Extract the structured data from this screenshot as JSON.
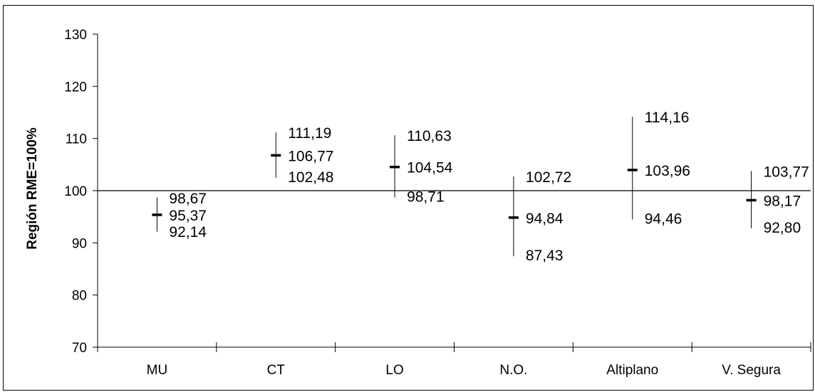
{
  "chart_data": {
    "type": "error_bar",
    "ylabel": "Región RME=100%",
    "ylim": [
      70,
      130
    ],
    "yticks": [
      70,
      80,
      90,
      100,
      110,
      120,
      130
    ],
    "ytick_labels": [
      "70",
      "80",
      "90",
      "100",
      "110",
      "120",
      "130"
    ],
    "reference_line": 100,
    "categories": [
      "MU",
      "CT",
      "LO",
      "N.O.",
      "Altiplano",
      "V. Segura"
    ],
    "points": [
      {
        "category": "MU",
        "upper": 98.67,
        "mid": 95.37,
        "lower": 92.14,
        "upper_label": "98,67",
        "mid_label": "95,37",
        "lower_label": "92,14"
      },
      {
        "category": "CT",
        "upper": 111.19,
        "mid": 106.77,
        "lower": 102.48,
        "upper_label": "111,19",
        "mid_label": "106,77",
        "lower_label": "102,48"
      },
      {
        "category": "LO",
        "upper": 110.63,
        "mid": 104.54,
        "lower": 98.71,
        "upper_label": "110,63",
        "mid_label": "104,54",
        "lower_label": "98,71"
      },
      {
        "category": "N.O.",
        "upper": 102.72,
        "mid": 94.84,
        "lower": 87.43,
        "upper_label": "102,72",
        "mid_label": "94,84",
        "lower_label": "87,43"
      },
      {
        "category": "Altiplano",
        "upper": 114.16,
        "mid": 103.96,
        "lower": 94.46,
        "upper_label": "114,16",
        "mid_label": "103,96",
        "lower_label": "94,46"
      },
      {
        "category": "V. Segura",
        "upper": 103.77,
        "mid": 98.17,
        "lower": 92.8,
        "upper_label": "103,77",
        "mid_label": "98,17",
        "lower_label": "92,80"
      }
    ],
    "grid": false,
    "legend": "none"
  }
}
